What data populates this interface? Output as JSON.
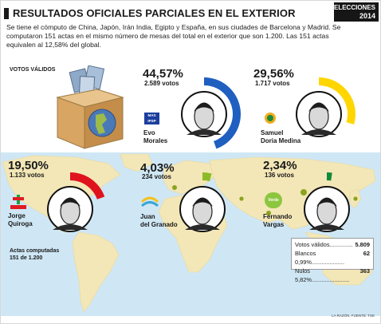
{
  "header": {
    "title": "RESULTADOS OFICIALES PARCIALES EN EL EXTERIOR",
    "badge_line1": "ELECCIONES",
    "badge_line2": "2014"
  },
  "intro_text": "Se tiene el cómputo de China, Japón, Irán India, Egipto y España, en sus ciudades de Barcelona y Madrid. Se computaron 151 actas en el mismo número de mesas del total  en el exterior que son 1.200. Las 151 actas equivalen al 12,58% del global.",
  "votos_validos_label": "VOTOS VÁLIDOS",
  "actas": {
    "line1": "Actas computadas",
    "line2": "151 de 1.200"
  },
  "stats": {
    "validos_label": "Votos válidos..............",
    "validos_value": "5.809",
    "blancos_label": "Blancos 0,99%....................",
    "blancos_value": "62",
    "nulos_label": "Nulos 5,82%.......................",
    "nulos_value": "363"
  },
  "source": "LA RAZÓN, FUENTE: TSE",
  "logos": {
    "mas": "MAS IPSP",
    "udm": "UNIDAD DEMÓCRATA",
    "pdc": "PDC",
    "verde": "Verde"
  },
  "candidates_text": [
    {
      "pct": "44,57%",
      "votes": "2.589 votos",
      "name1": "Evo",
      "name2": "Morales"
    },
    {
      "pct": "29,56%",
      "votes": "1.717 votos",
      "name1": "Samuel",
      "name2": "Doria Medina"
    },
    {
      "pct": "19,50%",
      "votes": "1.133 votos",
      "name1": "Jorge",
      "name2": "Quiroga"
    },
    {
      "pct": "4,03%",
      "votes": "234 votos",
      "name1": "Juan",
      "name2": "del Granado"
    },
    {
      "pct": "2,34%",
      "votes": "136 votos",
      "name1": "Fernando",
      "name2": "Vargas"
    }
  ],
  "chart_data": {
    "type": "pie",
    "title": "RESULTADOS OFICIALES PARCIALES EN EL EXTERIOR",
    "categories": [
      "Evo Morales",
      "Samuel Doria Medina",
      "Jorge Quiroga",
      "Juan del Granado",
      "Fernando Vargas"
    ],
    "values": [
      44.57,
      29.56,
      19.5,
      4.03,
      2.34
    ],
    "votes": [
      2589,
      1717,
      1133,
      234,
      136
    ],
    "colors": [
      "#1f5fbf",
      "#ffd600",
      "#e0121e",
      "#8dba27",
      "#0e8a3a"
    ],
    "unit": "%"
  }
}
